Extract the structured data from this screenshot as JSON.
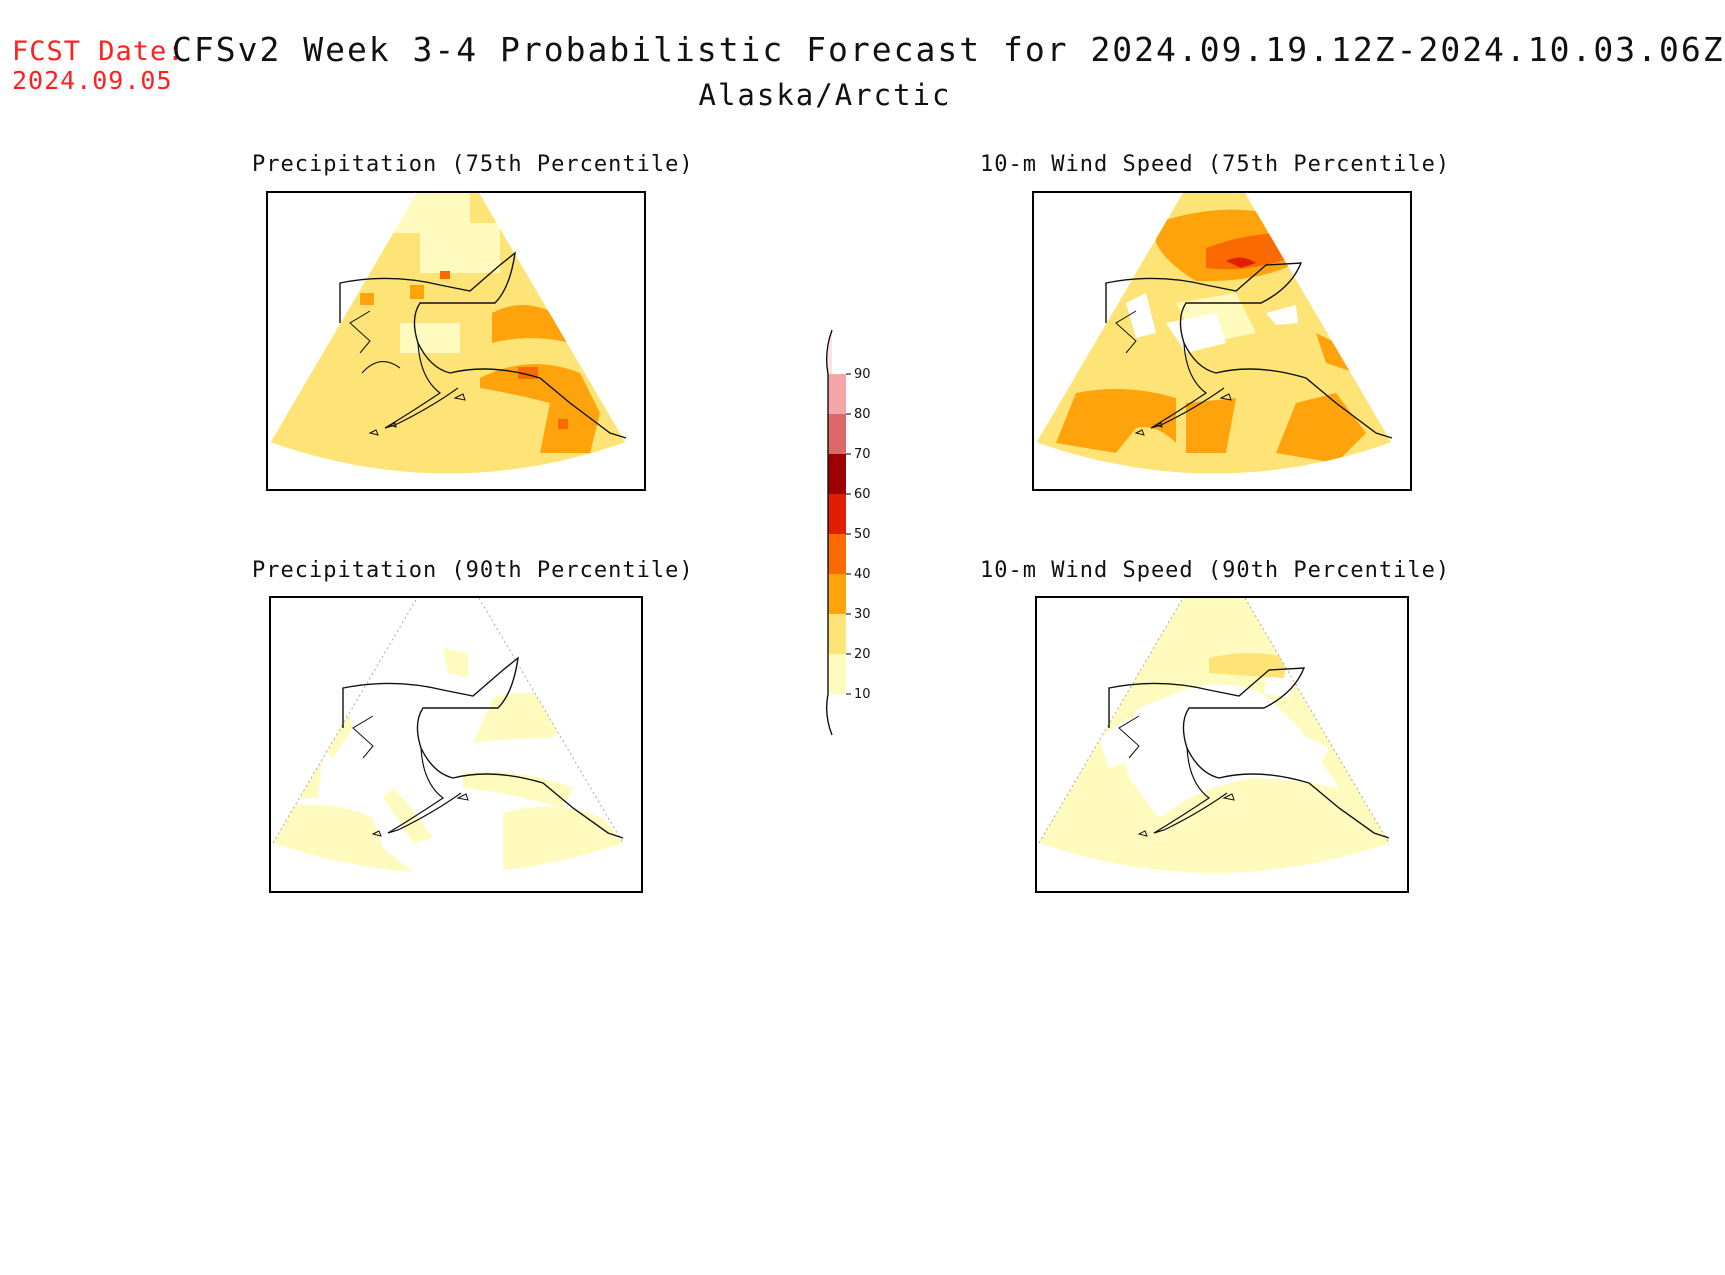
{
  "header": {
    "fcst_label": "FCST Date:",
    "fcst_date": "2024.09.05",
    "title": "CFSv2 Week 3-4 Probabilistic Forecast for 2024.09.19.12Z-2024.10.03.06Z",
    "region": "Alaska/Arctic"
  },
  "panels": [
    {
      "title": "Precipitation (75th Percentile)"
    },
    {
      "title": "10-m Wind Speed (75th Percentile)"
    },
    {
      "title": "Precipitation (90th Percentile)"
    },
    {
      "title": "10-m Wind Speed (90th Percentile)"
    }
  ],
  "colorbar": {
    "ticks": [
      "10",
      "20",
      "30",
      "40",
      "50",
      "60",
      "70",
      "80",
      "90"
    ],
    "colors": {
      "10-20": "#fffbbf",
      "20-30": "#fee377",
      "30-40": "#fea30b",
      "40-50": "#fb6a00",
      "50-60": "#e01e00",
      "60-70": "#9e0000",
      "70-80": "#de6868",
      "80-90": "#f5a6a6",
      "90+": "#fde4e4"
    }
  },
  "colors": {
    "label_red": "#ff2020",
    "light_yellow": "#fffbbf",
    "yellow": "#fee377",
    "orange": "#fea30b",
    "dark_orange": "#fb6a00",
    "red": "#e01e00"
  }
}
